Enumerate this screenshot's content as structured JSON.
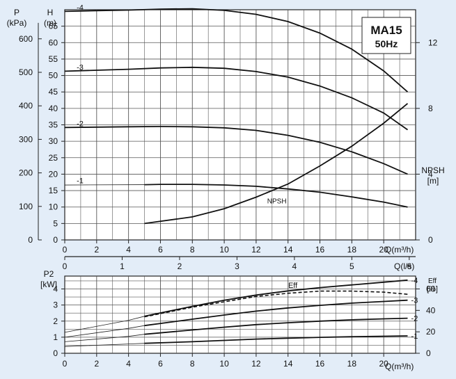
{
  "chart_data": [
    {
      "type": "line",
      "model": "MA15",
      "frequency": "50Hz",
      "y_left_outer": {
        "label_line1": "P",
        "label_line2": "(kPa)",
        "ticks": [
          0,
          100,
          200,
          300,
          400,
          500,
          600
        ]
      },
      "y_left_inner": {
        "label_line1": "H",
        "label_line2": "(m)",
        "ticks": [
          0,
          5,
          10,
          15,
          20,
          25,
          30,
          35,
          40,
          45,
          50,
          55,
          60,
          65
        ],
        "ylim": [
          0,
          70
        ]
      },
      "y_right": {
        "label_line1": "NPSH",
        "label_line2": "[m]",
        "ticks": [
          0,
          4,
          8,
          12
        ],
        "ylim": [
          0,
          14
        ]
      },
      "x_primary": {
        "label": "Q(m³/h)",
        "ticks": [
          0,
          2,
          4,
          6,
          8,
          10,
          12,
          14,
          16,
          18,
          20
        ],
        "xlim": [
          0,
          22
        ]
      },
      "x_secondary": {
        "label": "Q(l/s)",
        "ticks": [
          0,
          1,
          2,
          3,
          4,
          5,
          6
        ]
      },
      "series": [
        {
          "name": "-4",
          "x": [
            0,
            2,
            4,
            6,
            8,
            10,
            12,
            14,
            16,
            18,
            20,
            21.5
          ],
          "y": [
            69.5,
            69.7,
            69.9,
            70.2,
            70.3,
            69.8,
            68.6,
            66.4,
            62.9,
            58.0,
            51.4,
            45.0
          ]
        },
        {
          "name": "-3",
          "x": [
            0,
            2,
            4,
            6,
            8,
            10,
            12,
            14,
            16,
            18,
            20,
            21.5
          ],
          "y": [
            51.3,
            51.6,
            51.9,
            52.3,
            52.5,
            52.2,
            51.2,
            49.5,
            46.8,
            43.2,
            38.6,
            33.5
          ]
        },
        {
          "name": "-2",
          "x": [
            0,
            2,
            4,
            6,
            8,
            10,
            12,
            14,
            16,
            18,
            20,
            21.5
          ],
          "y": [
            34.2,
            34.3,
            34.4,
            34.5,
            34.4,
            34.1,
            33.3,
            31.8,
            29.7,
            26.8,
            23.2,
            20.0
          ]
        },
        {
          "name": "-1",
          "x": [
            5,
            6,
            8,
            10,
            12,
            14,
            16,
            18,
            20,
            21.5
          ],
          "y": [
            16.8,
            16.9,
            16.9,
            16.7,
            16.3,
            15.5,
            14.5,
            13.1,
            11.5,
            10.0
          ]
        },
        {
          "name": "NPSH",
          "x": [
            5,
            8,
            10,
            12,
            14,
            16,
            18,
            20,
            21.5
          ],
          "y": [
            1.0,
            1.4,
            1.9,
            2.6,
            3.4,
            4.5,
            5.7,
            7.1,
            8.3
          ]
        }
      ]
    },
    {
      "type": "line",
      "y_left": {
        "label_line1": "P2",
        "label_line2": "[kW]",
        "ticks": [
          0,
          1,
          2,
          3,
          4
        ],
        "ylim": [
          0,
          4.8
        ]
      },
      "y_right": {
        "label_line1": "Eff",
        "label_line2": "[%]",
        "ticks": [
          0,
          20,
          40,
          60
        ],
        "ylim": [
          0,
          72
        ]
      },
      "x": {
        "label": "Q(m³/h)",
        "ticks": [
          0,
          2,
          4,
          6,
          8,
          10,
          12,
          14,
          16,
          18,
          20
        ],
        "xlim": [
          0,
          22
        ]
      },
      "series": [
        {
          "name": "-4",
          "x": [
            0,
            4,
            5,
            8,
            10,
            12,
            14,
            16,
            18,
            20,
            21.5
          ],
          "y": [
            1.3,
            2.05,
            2.3,
            2.92,
            3.3,
            3.62,
            3.88,
            4.08,
            4.25,
            4.42,
            4.55
          ]
        },
        {
          "name": "-3",
          "x": [
            0,
            4,
            5,
            8,
            10,
            12,
            14,
            16,
            18,
            20,
            21.5
          ],
          "y": [
            1.0,
            1.55,
            1.72,
            2.12,
            2.38,
            2.62,
            2.82,
            2.98,
            3.12,
            3.22,
            3.3
          ]
        },
        {
          "name": "-2",
          "x": [
            0,
            4,
            5,
            8,
            10,
            12,
            14,
            16,
            18,
            20,
            21.5
          ],
          "y": [
            0.72,
            1.05,
            1.18,
            1.45,
            1.62,
            1.78,
            1.9,
            2.0,
            2.08,
            2.14,
            2.18
          ]
        },
        {
          "name": "-1",
          "x": [
            0,
            4,
            5,
            8,
            10,
            12,
            14,
            16,
            18,
            20,
            21.5
          ],
          "y": [
            0.42,
            0.58,
            0.62,
            0.72,
            0.8,
            0.88,
            0.94,
            0.99,
            1.03,
            1.06,
            1.08
          ]
        },
        {
          "name": "Eff",
          "axis": "right",
          "dashed": true,
          "x": [
            5,
            6,
            8,
            10,
            12,
            14,
            16,
            18,
            20,
            21.5
          ],
          "y": [
            34,
            37,
            43,
            48,
            53,
            56,
            58,
            58,
            57,
            55
          ]
        }
      ]
    }
  ]
}
